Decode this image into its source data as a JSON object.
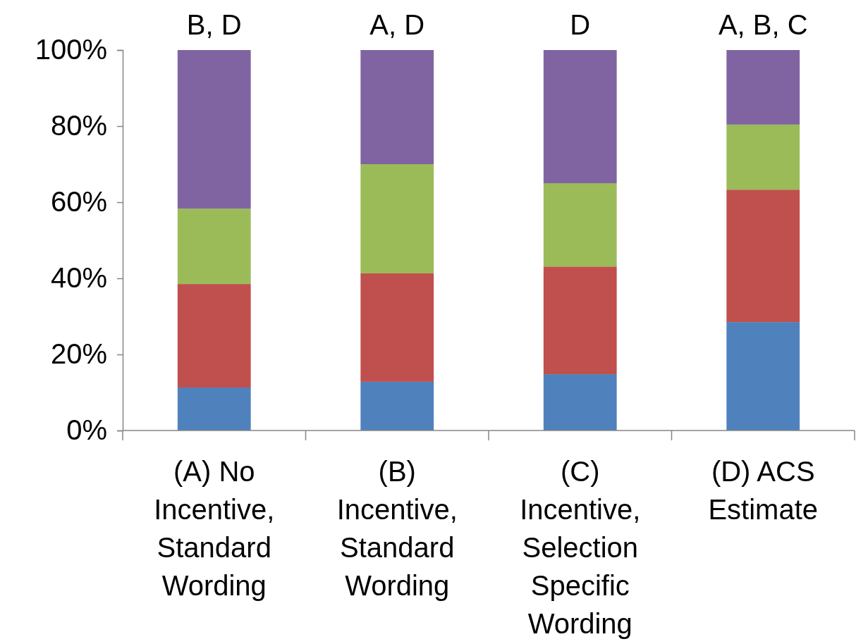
{
  "chart_data": {
    "type": "bar",
    "stacked": true,
    "categories": [
      "(A) No Incentive, Standard Wording",
      "(B) Incentive, Standard Wording",
      "(C) Incentive, Selection Specific Wording",
      "(D) ACS Estimate"
    ],
    "series": [
      {
        "color": "#4f81bd",
        "values": [
          11.3,
          12.8,
          14.8,
          28.5
        ]
      },
      {
        "color": "#c0504d",
        "values": [
          27.2,
          28.5,
          28.3,
          34.8
        ]
      },
      {
        "color": "#9bbb59",
        "values": [
          19.8,
          28.7,
          21.9,
          17.1
        ]
      },
      {
        "color": "#8064a2",
        "values": [
          41.7,
          30,
          35,
          19.6
        ]
      }
    ],
    "ylim": [
      0,
      100
    ],
    "yticks": [
      {
        "value": 0,
        "label": "0%"
      },
      {
        "value": 20,
        "label": "20%"
      },
      {
        "value": 40,
        "label": "40%"
      },
      {
        "value": 60,
        "label": "60%"
      },
      {
        "value": 80,
        "label": "80%"
      },
      {
        "value": 100,
        "label": "100%"
      }
    ],
    "grid": false,
    "annotations": [
      {
        "text": "B, D",
        "x": "(A) No Incentive, Standard Wording",
        "y": 100
      },
      {
        "text": "A, D",
        "x": "(B) Incentive, Standard Wording",
        "y": 100
      },
      {
        "text": "D",
        "x": "(C) Incentive, Selection Specific Wording",
        "y": 100
      },
      {
        "text": "A, B, C",
        "x": "(D) ACS Estimate",
        "y": 100
      }
    ]
  }
}
